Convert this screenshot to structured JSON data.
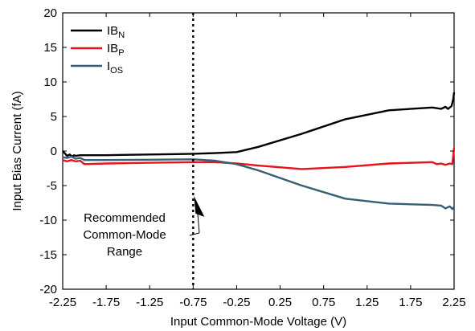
{
  "chart_data": {
    "type": "line",
    "xlabel": "Input Common-Mode Voltage (V)",
    "ylabel": "Input Bias Current (fA)",
    "xlim": [
      -2.25,
      2.25
    ],
    "ylim": [
      -20,
      20
    ],
    "xticks": [
      -2.25,
      -1.75,
      -1.25,
      -0.75,
      -0.25,
      0.25,
      0.75,
      1.25,
      1.75,
      2.25
    ],
    "xtick_labels": [
      "-2.25",
      "-1.75",
      "-1.25",
      "-0.75",
      "-0.25",
      "0.25",
      "0.75",
      "1.25",
      "1.75",
      "2.25"
    ],
    "yticks": [
      -20,
      -15,
      -10,
      -5,
      0,
      5,
      10,
      15,
      20
    ],
    "ytick_labels": [
      "-20",
      "-15",
      "-10",
      "-5",
      "0",
      "5",
      "10",
      "15",
      "20"
    ],
    "grid": false,
    "legend_position": "top-left",
    "series": [
      {
        "name": "IB",
        "name_sub": "N",
        "color": "#000000",
        "x": [
          -2.25,
          -2.22,
          -2.2,
          -2.17,
          -2.14,
          -2.12,
          -2.1,
          -2.05,
          -2.0,
          -1.75,
          -1.5,
          -1.25,
          -1.0,
          -0.75,
          -0.5,
          -0.25,
          0.0,
          0.5,
          1.0,
          1.5,
          2.0,
          2.1,
          2.15,
          2.18,
          2.2,
          2.22,
          2.24,
          2.25
        ],
        "y": [
          0.0,
          -0.4,
          -0.7,
          -0.5,
          -0.8,
          -0.6,
          -0.7,
          -0.6,
          -0.6,
          -0.6,
          -0.55,
          -0.5,
          -0.45,
          -0.4,
          -0.3,
          -0.15,
          0.6,
          2.5,
          4.6,
          5.9,
          6.3,
          6.1,
          6.4,
          6.1,
          6.3,
          6.5,
          7.5,
          8.5
        ]
      },
      {
        "name": "IB",
        "name_sub": "P",
        "color": "#e8131b",
        "x": [
          -2.25,
          -2.2,
          -2.15,
          -2.1,
          -2.05,
          -2.0,
          -1.75,
          -1.25,
          -0.75,
          -0.5,
          -0.25,
          0.0,
          0.5,
          1.0,
          1.5,
          2.0,
          2.05,
          2.1,
          2.15,
          2.2,
          2.23,
          2.25
        ],
        "y": [
          -1.3,
          -1.5,
          -1.3,
          -1.5,
          -1.4,
          -1.9,
          -1.8,
          -1.7,
          -1.6,
          -1.6,
          -1.8,
          -2.1,
          -2.6,
          -2.3,
          -1.8,
          -1.6,
          -1.9,
          -1.8,
          -2.0,
          -1.8,
          -1.9,
          0.5
        ]
      },
      {
        "name": "I",
        "name_sub": "OS",
        "color": "#365f77",
        "x": [
          -2.25,
          -2.2,
          -2.15,
          -2.1,
          -2.05,
          -2.0,
          -1.75,
          -1.25,
          -0.75,
          -0.5,
          -0.25,
          0.0,
          0.5,
          1.0,
          1.5,
          2.0,
          2.1,
          2.15,
          2.2,
          2.23,
          2.25
        ],
        "y": [
          -0.9,
          -1.0,
          -0.8,
          -1.1,
          -1.0,
          -1.3,
          -1.3,
          -1.25,
          -1.2,
          -1.4,
          -1.9,
          -2.8,
          -5.0,
          -6.9,
          -7.6,
          -7.8,
          -7.9,
          -8.3,
          -8.0,
          -8.4,
          -8.1
        ]
      }
    ],
    "reference_line": {
      "x": -0.75,
      "style": "dotted"
    },
    "annotation": {
      "lines": [
        "Recommended",
        "Common-Mode",
        "Range"
      ],
      "arrow_to": [
        -0.75,
        -6.5
      ],
      "arrow_from": [
        -0.7,
        -12
      ]
    }
  }
}
